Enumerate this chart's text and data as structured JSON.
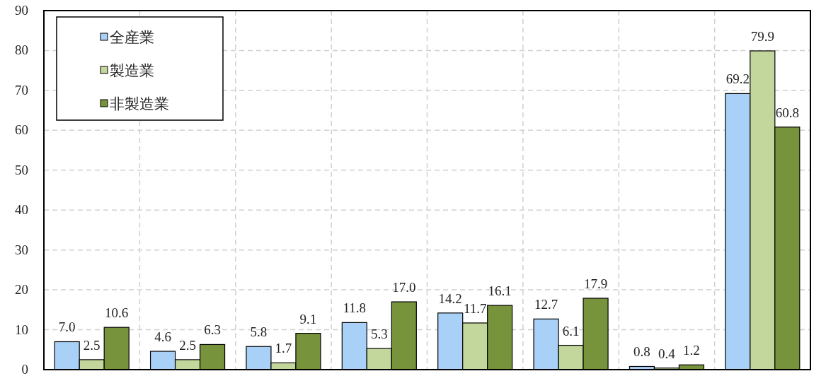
{
  "chart_data": {
    "type": "bar",
    "categories": [
      null,
      null,
      null,
      null,
      null,
      null,
      null,
      null
    ],
    "series": [
      {
        "name": "全産業",
        "color": "#a9d1f7",
        "values": [
          7.0,
          4.6,
          5.8,
          11.8,
          14.2,
          12.7,
          0.8,
          69.2
        ],
        "value_labels": [
          "7.0",
          "4.6",
          "5.8",
          "11.8",
          "14.2",
          "12.7",
          "0.8",
          "69.2"
        ]
      },
      {
        "name": "製造業",
        "color": "#c3d69b",
        "values": [
          2.5,
          2.5,
          1.7,
          5.3,
          11.7,
          6.1,
          0.4,
          79.9
        ],
        "value_labels": [
          "2.5",
          "2.5",
          "1.7",
          "5.3",
          "11.7",
          "6.1",
          "0.4",
          "79.9"
        ]
      },
      {
        "name": "非製造業",
        "color": "#77933c",
        "values": [
          10.6,
          6.3,
          9.1,
          17.0,
          16.1,
          17.9,
          1.2,
          60.8
        ],
        "value_labels": [
          "10.6",
          "6.3",
          "9.1",
          "17.0",
          "16.1",
          "17.9",
          "1.2",
          "60.8"
        ]
      }
    ],
    "ylim": [
      0,
      90
    ],
    "yticks": [
      0,
      10,
      20,
      30,
      40,
      50,
      60,
      70,
      80,
      90
    ],
    "grid": true,
    "legend": "top left",
    "tick_labels": "y"
  }
}
